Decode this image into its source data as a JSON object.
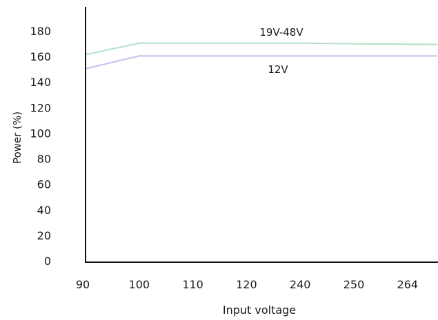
{
  "chart_data": {
    "type": "line",
    "title": "",
    "xlabel": "Input voltage",
    "ylabel": "Power (%)",
    "categories": [
      "90",
      "100",
      "110",
      "120",
      "240",
      "250",
      "264"
    ],
    "yticks": [
      "0",
      "20",
      "40",
      "60",
      "80",
      "100",
      "120",
      "140",
      "160",
      "180"
    ],
    "ylim": [
      0,
      190
    ],
    "grid": false,
    "series": [
      {
        "name": "19V-48V",
        "color": "#b8e2c8",
        "values": [
          162,
          171,
          171,
          171,
          171,
          170.5,
          170
        ]
      },
      {
        "name": "12V",
        "color": "#c7c3ee",
        "values": [
          151,
          161,
          161,
          161,
          161,
          161,
          161
        ]
      }
    ]
  }
}
